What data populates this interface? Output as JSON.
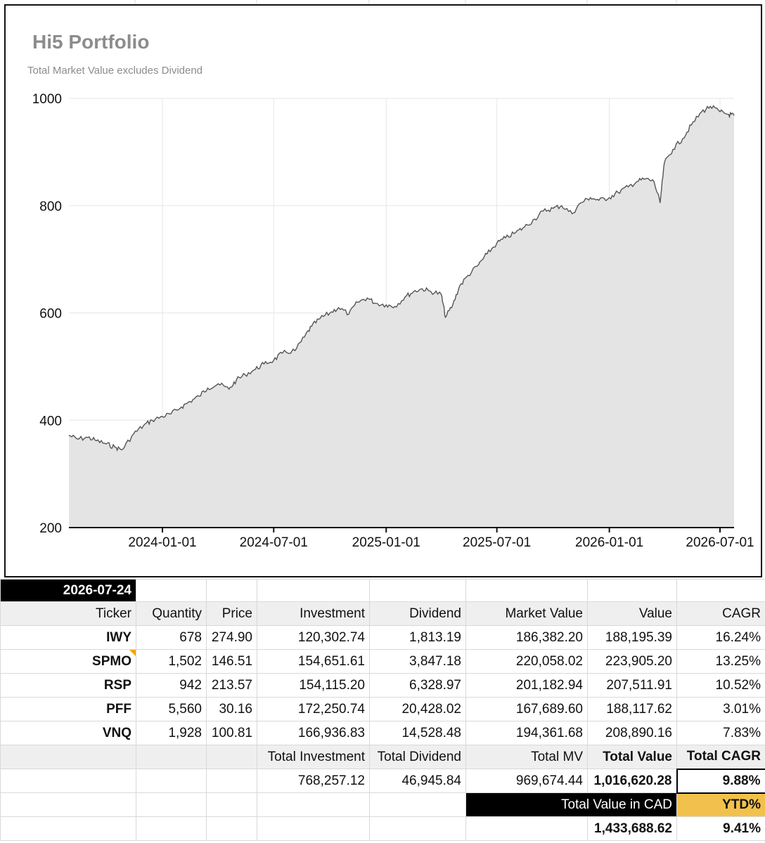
{
  "chart_data": {
    "type": "area",
    "title": "Hi5 Portfolio",
    "subtitle": "Total Market Value excludes Dividend",
    "ylim": [
      200,
      1000
    ],
    "yticks": [
      "200",
      "400",
      "600",
      "800",
      "1000"
    ],
    "xlim": [
      "2023-08-01",
      "2026-07-24"
    ],
    "xticks": [
      "2024-01-01",
      "2024-07-01",
      "2025-01-01",
      "2025-07-01",
      "2026-01-01",
      "2026-07-01"
    ],
    "grid": true,
    "series": [
      {
        "x": [
          "2023-08-01",
          "2023-08-15",
          "2023-09-01",
          "2023-09-15",
          "2023-10-01",
          "2023-10-15",
          "2023-10-27",
          "2023-11-15",
          "2023-12-01",
          "2023-12-15",
          "2024-01-01",
          "2024-01-15",
          "2024-02-01",
          "2024-02-15",
          "2024-03-01",
          "2024-03-15",
          "2024-04-01",
          "2024-04-19",
          "2024-05-01",
          "2024-05-15",
          "2024-06-01",
          "2024-06-15",
          "2024-07-01",
          "2024-07-15",
          "2024-08-05",
          "2024-08-20",
          "2024-09-01",
          "2024-09-15",
          "2024-10-01",
          "2024-10-15",
          "2024-11-01",
          "2024-11-15",
          "2024-12-01",
          "2024-12-15",
          "2025-01-01",
          "2025-01-15",
          "2025-02-01",
          "2025-02-15",
          "2025-03-01",
          "2025-03-15",
          "2025-04-01",
          "2025-04-08",
          "2025-04-20",
          "2025-05-01",
          "2025-05-15",
          "2025-06-01",
          "2025-06-15",
          "2025-07-01",
          "2025-07-15",
          "2025-08-01",
          "2025-08-15",
          "2025-09-01",
          "2025-09-15",
          "2025-10-01",
          "2025-10-15",
          "2025-11-01",
          "2025-11-15",
          "2025-12-01",
          "2025-12-15",
          "2026-01-01",
          "2026-01-15",
          "2026-02-01",
          "2026-02-15",
          "2026-03-01",
          "2026-03-15",
          "2026-03-25",
          "2026-04-01",
          "2026-04-15",
          "2026-05-01",
          "2026-05-15",
          "2026-06-01",
          "2026-06-15",
          "2026-07-01",
          "2026-07-15",
          "2026-07-24"
        ],
        "values": [
          372,
          365,
          368,
          362,
          356,
          350,
          345,
          375,
          390,
          400,
          407,
          412,
          425,
          435,
          445,
          460,
          468,
          458,
          475,
          485,
          495,
          505,
          512,
          525,
          530,
          555,
          575,
          590,
          600,
          610,
          598,
          620,
          628,
          618,
          615,
          612,
          630,
          640,
          645,
          640,
          635,
          592,
          615,
          650,
          670,
          690,
          710,
          730,
          740,
          750,
          760,
          775,
          790,
          795,
          800,
          785,
          805,
          815,
          810,
          815,
          825,
          835,
          845,
          850,
          845,
          805,
          880,
          905,
          925,
          950,
          975,
          985,
          975,
          970,
          968
        ]
      }
    ]
  },
  "table": {
    "date": "2026-07-24",
    "headers": [
      "Ticker",
      "Quantity",
      "Price",
      "Investment",
      "Dividend",
      "Market Value",
      "Value",
      "CAGR"
    ],
    "rows": [
      [
        "IWY",
        "678",
        "274.90",
        "120,302.74",
        "1,813.19",
        "186,382.20",
        "188,195.39",
        "16.24%"
      ],
      [
        "SPMO",
        "1,502",
        "146.51",
        "154,651.61",
        "3,847.18",
        "220,058.02",
        "223,905.20",
        "13.25%"
      ],
      [
        "RSP",
        "942",
        "213.57",
        "154,115.20",
        "6,328.97",
        "201,182.94",
        "207,511.91",
        "10.52%"
      ],
      [
        "PFF",
        "5,560",
        "30.16",
        "172,250.74",
        "20,428.02",
        "167,689.60",
        "188,117.62",
        "3.01%"
      ],
      [
        "VNQ",
        "1,928",
        "100.81",
        "166,936.83",
        "14,528.48",
        "194,361.68",
        "208,890.16",
        "7.83%"
      ]
    ],
    "totals_labels": {
      "investment": "Total Investment",
      "dividend": "Total Dividend",
      "mv": "Total MV",
      "value": "Total Value",
      "cagr": "Total CAGR"
    },
    "totals": {
      "investment": "768,257.12",
      "dividend": "46,945.84",
      "mv": "969,674.44",
      "value": "1,016,620.28",
      "cagr": "9.88%"
    },
    "cad_label": "Total Value in CAD",
    "ytd_label": "YTD%",
    "cad_value": "1,433,688.62",
    "ytd_value": "9.41%"
  },
  "colors": {
    "area_fill": "#e4e4e4",
    "line": "#555555",
    "grid": "#e6e6e6",
    "ytd_highlight": "#f1c14b"
  }
}
